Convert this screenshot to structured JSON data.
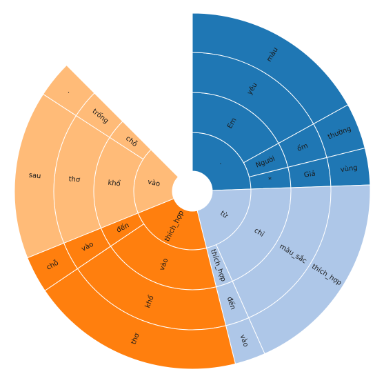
{
  "chart_data": {
    "type": "sunburst",
    "colors": {
      "blue": "#1f77b4",
      "lightblue": "#aec7e8",
      "orange": "#ff7f0e",
      "lightorange": "#ffbb78"
    },
    "segments": [
      {
        "label": ".",
        "level": 1,
        "start": 0,
        "end": 88,
        "color": "blue"
      },
      {
        "label": "Em",
        "level": 2,
        "start": 0,
        "end": 61,
        "color": "blue"
      },
      {
        "label": "yêu",
        "level": 3,
        "start": 0,
        "end": 61,
        "color": "blue"
      },
      {
        "label": "màu",
        "level": 4,
        "start": 0,
        "end": 61,
        "color": "blue"
      },
      {
        "label": "Người",
        "level": 2,
        "start": 61,
        "end": 76,
        "color": "blue"
      },
      {
        "label": "ốm",
        "level": 3,
        "start": 61,
        "end": 76,
        "color": "blue"
      },
      {
        "label": "thường",
        "level": 4,
        "start": 61,
        "end": 76,
        "color": "blue"
      },
      {
        "label": "*",
        "level": 2,
        "start": 76,
        "end": 88,
        "color": "blue"
      },
      {
        "label": "Giả",
        "level": 3,
        "start": 76,
        "end": 88,
        "color": "blue"
      },
      {
        "label": "vùng",
        "level": 4,
        "start": 76,
        "end": 88,
        "color": "blue"
      },
      {
        "label": "từ",
        "level": 1,
        "start": 88,
        "end": 166,
        "color": "lightblue"
      },
      {
        "label": "chỉ",
        "level": 2,
        "start": 88,
        "end": 156,
        "color": "lightblue"
      },
      {
        "label": "màu_sắc",
        "level": 3,
        "start": 88,
        "end": 156,
        "color": "lightblue"
      },
      {
        "label": "thích_hợp",
        "level": 4,
        "start": 88,
        "end": 156,
        "color": "lightblue"
      },
      {
        "label": "thích_hợp",
        "level": 2,
        "start": 156,
        "end": 166,
        "color": "lightblue"
      },
      {
        "label": "đến",
        "level": 3,
        "start": 156,
        "end": 166,
        "color": "lightblue"
      },
      {
        "label": "vào",
        "level": 4,
        "start": 156,
        "end": 166,
        "color": "lightblue"
      },
      {
        "label": "thích_hợp",
        "level": 1,
        "start": 166,
        "end": 248,
        "color": "orange"
      },
      {
        "label": "vào",
        "level": 2,
        "start": 166,
        "end": 236,
        "color": "orange"
      },
      {
        "label": "khổ",
        "level": 3,
        "start": 166,
        "end": 236,
        "color": "orange"
      },
      {
        "label": "thơ",
        "level": 4,
        "start": 166,
        "end": 236,
        "color": "orange"
      },
      {
        "label": "đến",
        "level": 2,
        "start": 236,
        "end": 248,
        "color": "orange"
      },
      {
        "label": "vào",
        "level": 3,
        "start": 236,
        "end": 248,
        "color": "orange"
      },
      {
        "label": "chỗ",
        "level": 4,
        "start": 236,
        "end": 248,
        "color": "orange"
      },
      {
        "label": "vào",
        "level": 1,
        "start": 248,
        "end": 315,
        "color": "lightorange"
      },
      {
        "label": "khổ",
        "level": 2,
        "start": 248,
        "end": 303,
        "color": "lightorange"
      },
      {
        "label": "thơ",
        "level": 3,
        "start": 248,
        "end": 303,
        "color": "lightorange"
      },
      {
        "label": "sau",
        "level": 4,
        "start": 248,
        "end": 303,
        "color": "lightorange"
      },
      {
        "label": "chỗ",
        "level": 2,
        "start": 303,
        "end": 315,
        "color": "lightorange"
      },
      {
        "label": "trống",
        "level": 3,
        "start": 303,
        "end": 315,
        "color": "lightorange"
      },
      {
        "label": ".",
        "level": 4,
        "start": 303,
        "end": 315,
        "color": "lightorange"
      }
    ]
  }
}
